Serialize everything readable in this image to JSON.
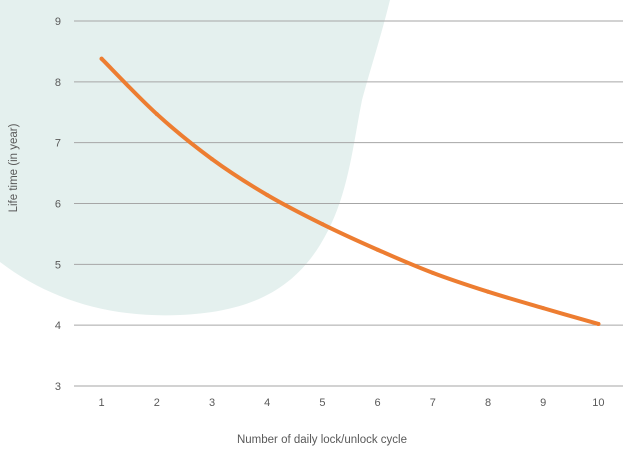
{
  "chart_data": {
    "type": "line",
    "title": "",
    "xlabel": "Number of daily lock/unlock cycle",
    "ylabel": "Life time (in year)",
    "x": [
      1,
      2,
      3,
      4,
      5,
      6,
      7,
      8,
      9,
      10
    ],
    "series": [
      {
        "values": [
          8.38,
          7.47,
          6.73,
          6.14,
          5.66,
          5.24,
          4.86,
          4.55,
          4.28,
          4.02
        ],
        "color": "#ED7D31"
      }
    ],
    "x_ticks": [
      "1",
      "2",
      "3",
      "4",
      "5",
      "6",
      "7",
      "8",
      "9",
      "10"
    ],
    "y_ticks": [
      "3",
      "4",
      "5",
      "6",
      "7",
      "8",
      "9"
    ],
    "ylim": [
      3,
      9
    ],
    "xlim": [
      0.5,
      10.5
    ],
    "grid": true,
    "legend": "none",
    "colors": {
      "gridline": "#A6A6A6",
      "text": "#595959",
      "background_shape": "#E4F0EE"
    }
  }
}
